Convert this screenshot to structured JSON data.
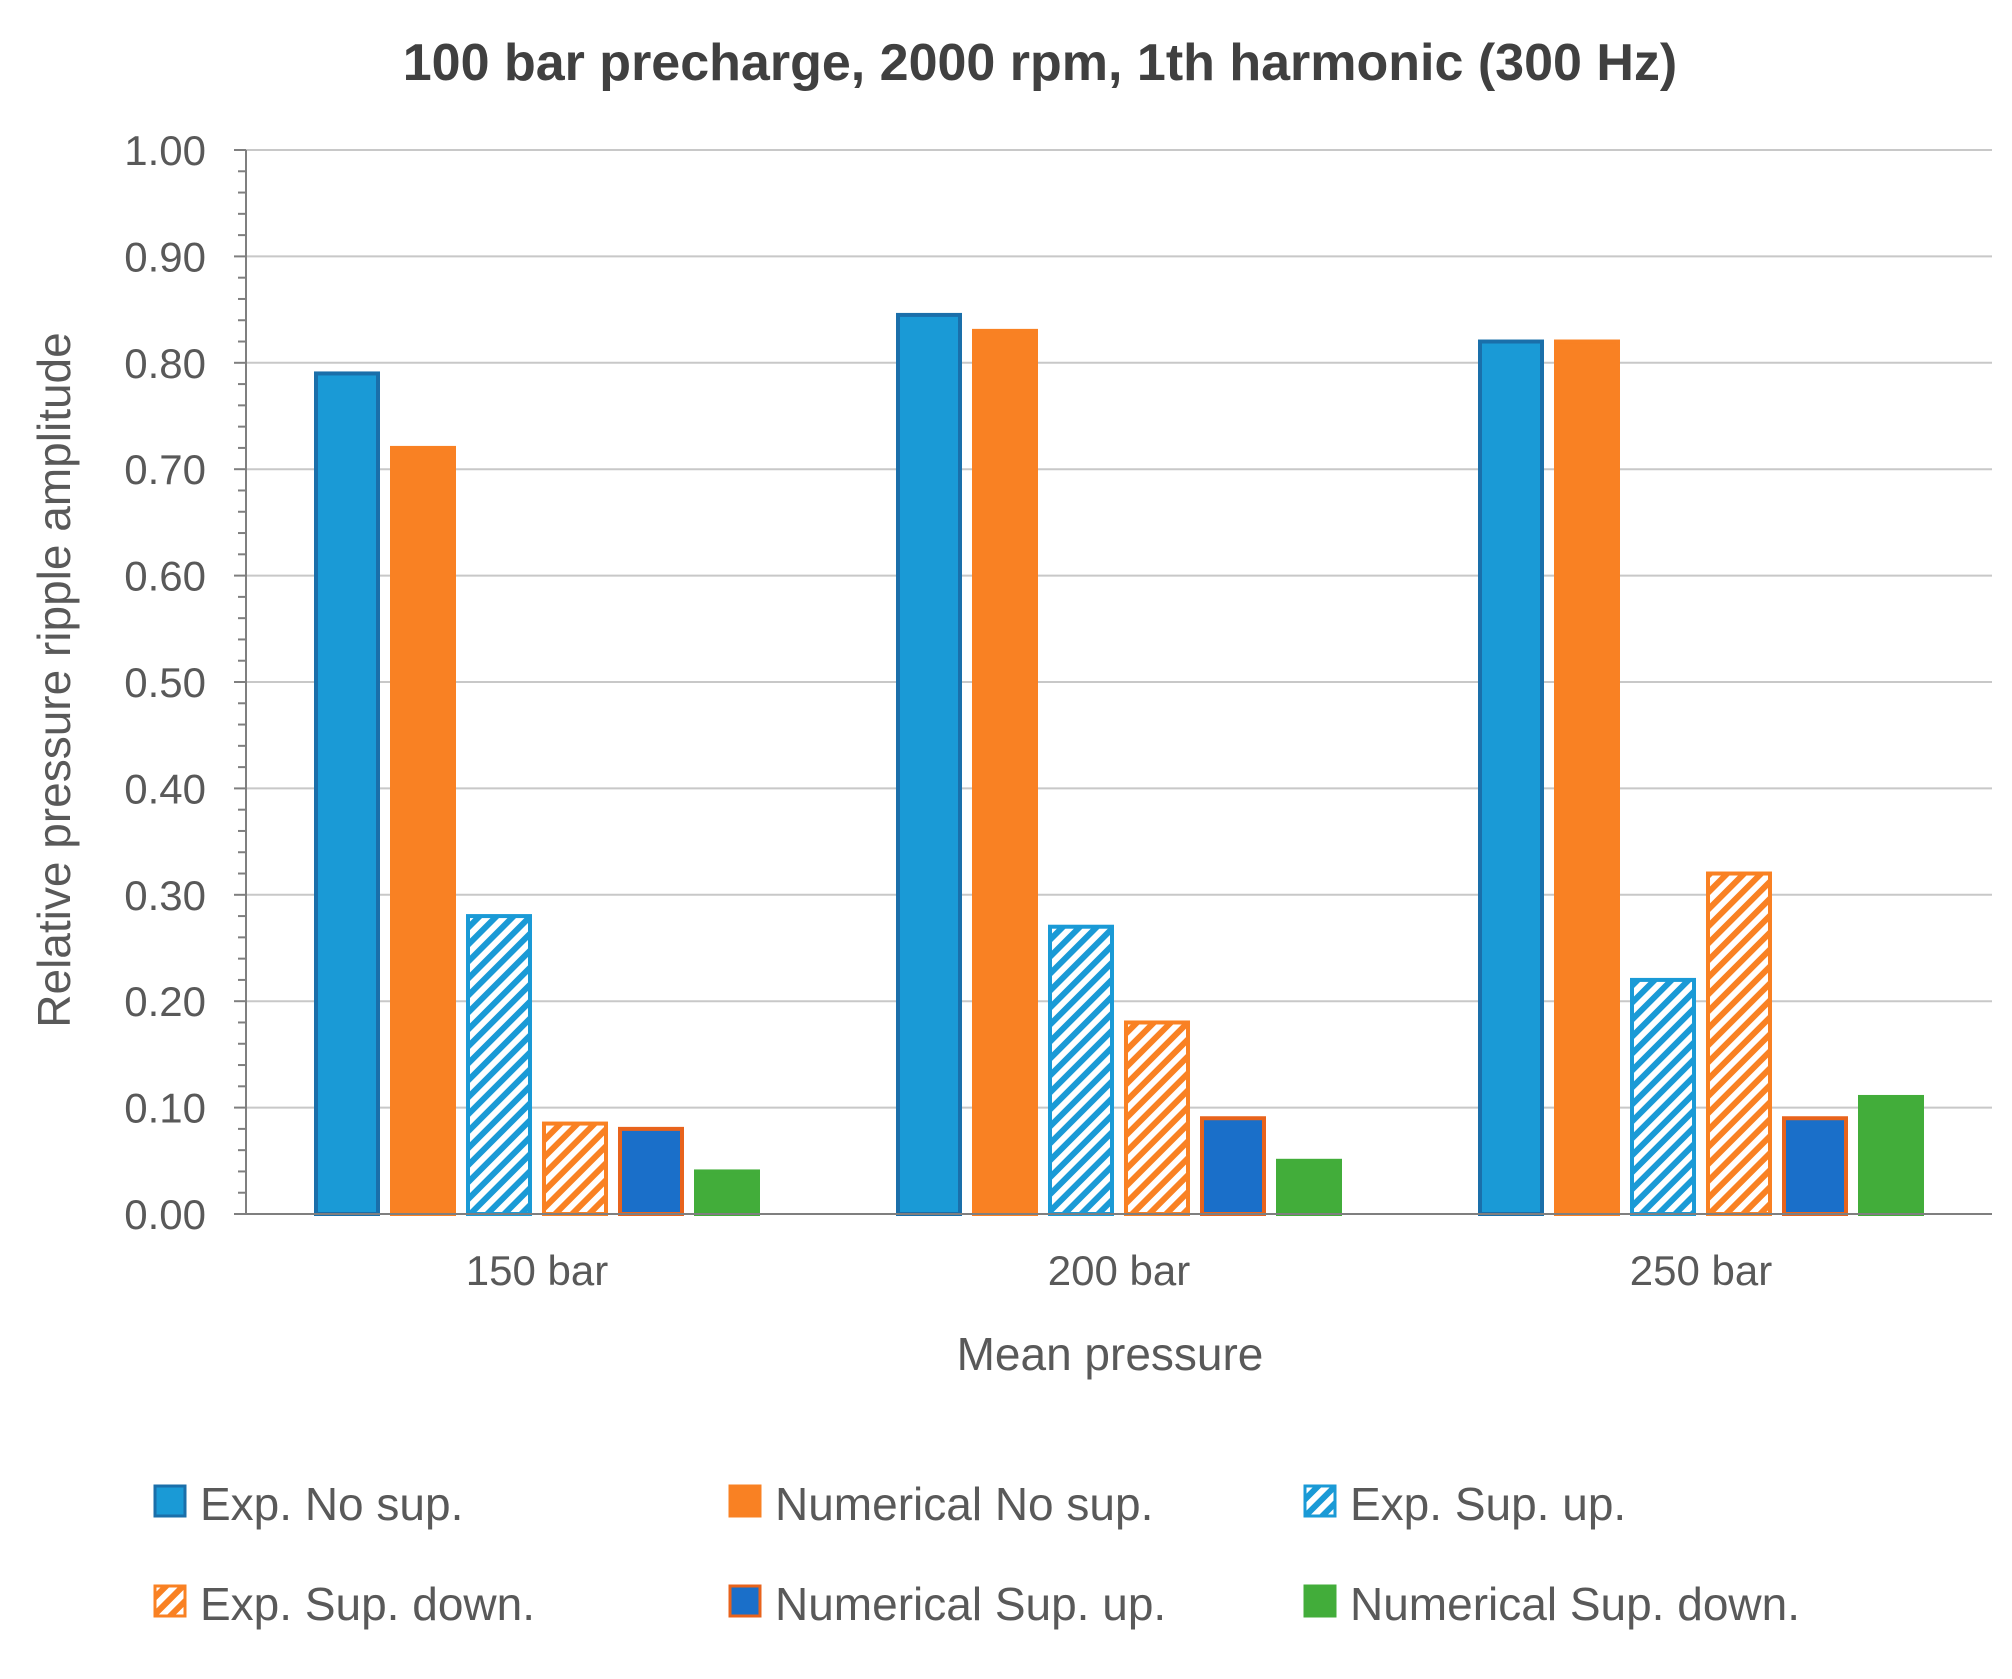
{
  "chart_data": {
    "type": "bar",
    "title": "100 bar precharge, 2000 rpm, 1th harmonic (300 Hz)",
    "xlabel": "Mean pressure",
    "ylabel": "Relative pressure ripple amplitude",
    "ylim": [
      0,
      1.0
    ],
    "yticks": [
      "0.00",
      "0.10",
      "0.20",
      "0.30",
      "0.40",
      "0.50",
      "0.60",
      "0.70",
      "0.80",
      "0.90",
      "1.00"
    ],
    "categories": [
      "150 bar",
      "200 bar",
      "250 bar"
    ],
    "legend_position": "bottom",
    "grid": true,
    "series": [
      {
        "name": "Exp. No sup.",
        "values": [
          0.79,
          0.845,
          0.82
        ],
        "fill": "#1a9ad6",
        "stroke": "#1a6faa",
        "pattern": "solid"
      },
      {
        "name": "Numerical No sup.",
        "values": [
          0.72,
          0.83,
          0.82
        ],
        "fill": "#f98123",
        "stroke": "#f98123",
        "pattern": "solid"
      },
      {
        "name": "Exp. Sup. up.",
        "values": [
          0.28,
          0.27,
          0.22
        ],
        "fill": "#1a9ad6",
        "stroke": "#1a9ad6",
        "pattern": "hatch"
      },
      {
        "name": "Exp. Sup. down.",
        "values": [
          0.085,
          0.18,
          0.32
        ],
        "fill": "#f98123",
        "stroke": "#f98123",
        "pattern": "hatch"
      },
      {
        "name": "Numerical Sup. up.",
        "values": [
          0.08,
          0.09,
          0.09
        ],
        "fill": "#1a6fc9",
        "stroke": "#e8631c",
        "pattern": "solid"
      },
      {
        "name": "Numerical Sup. down.",
        "values": [
          0.04,
          0.05,
          0.11
        ],
        "fill": "#42ad3a",
        "stroke": "#42ad3a",
        "pattern": "solid"
      }
    ]
  }
}
